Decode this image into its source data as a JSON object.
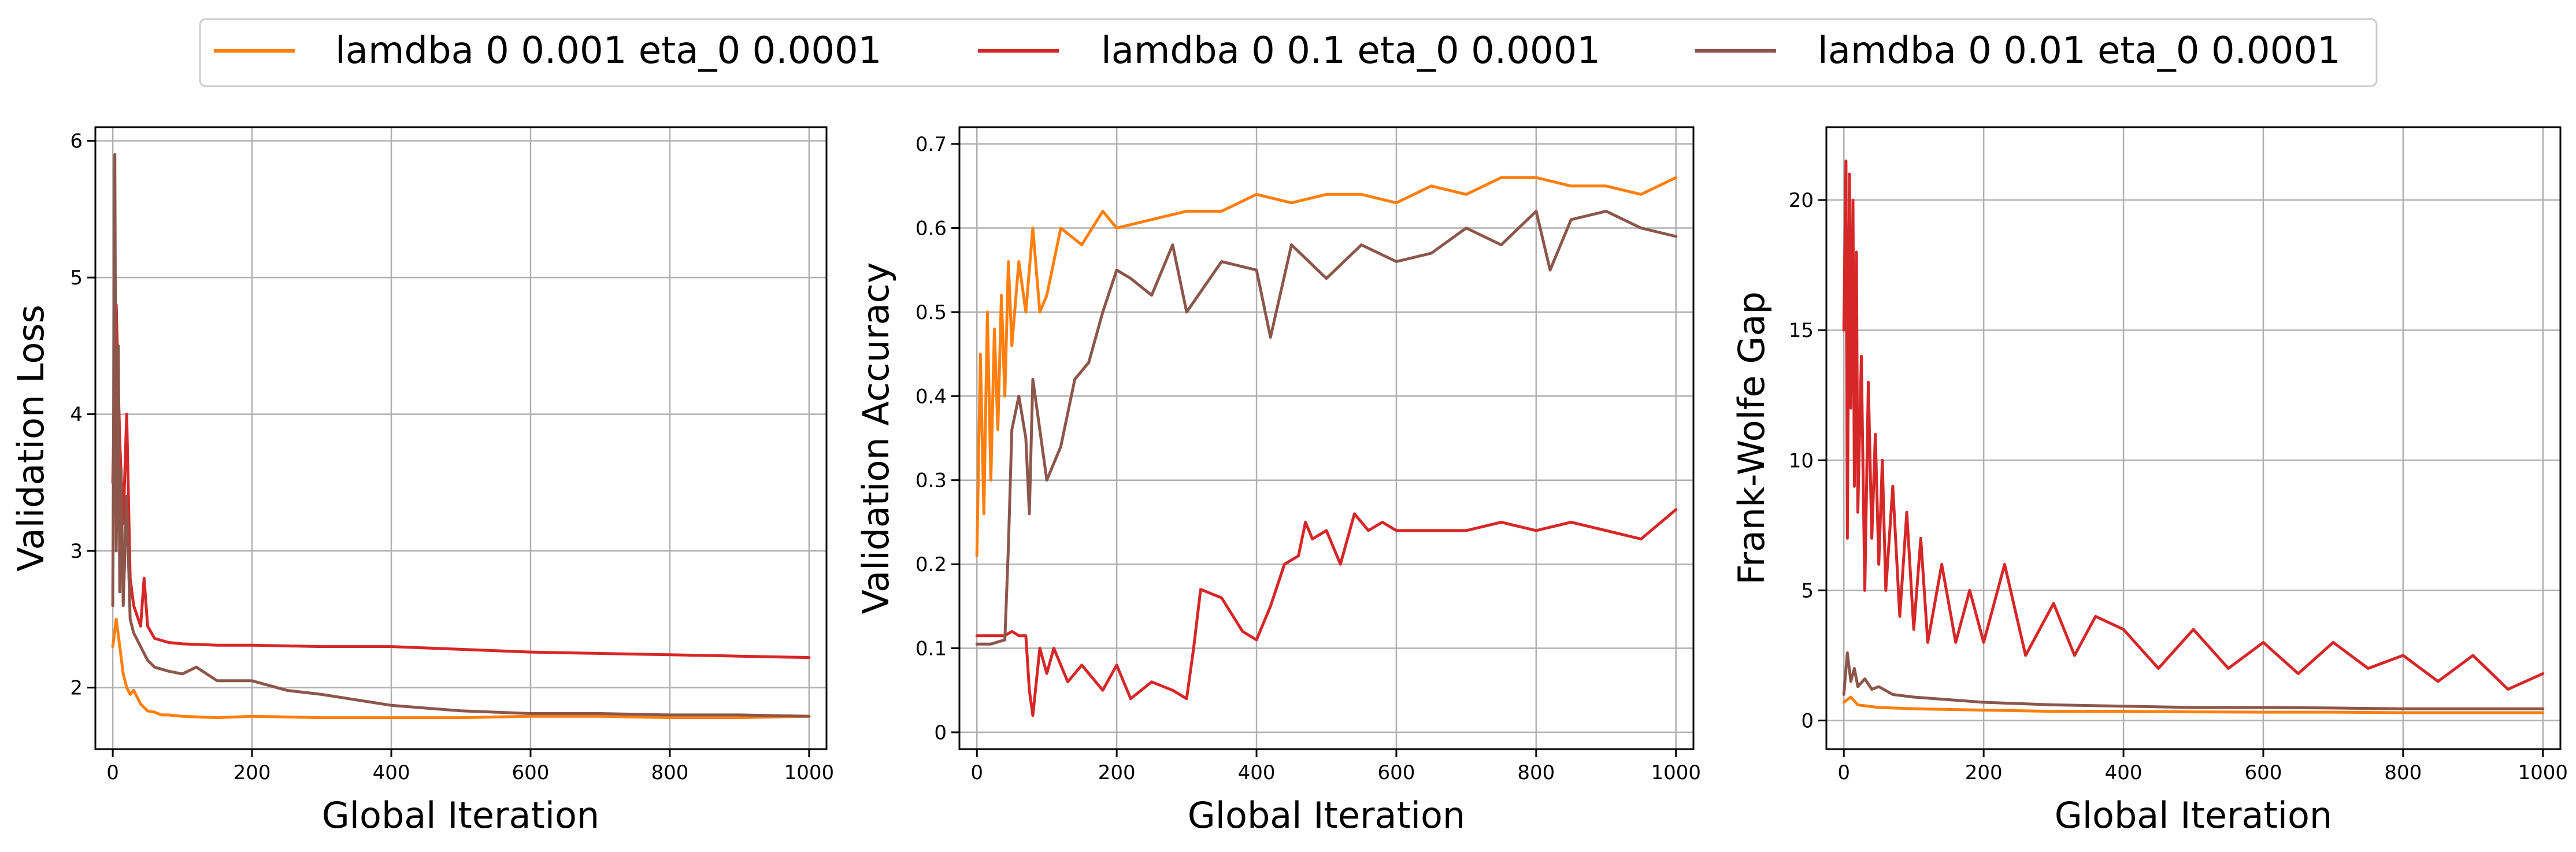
{
  "chart_data": [
    {
      "type": "line",
      "xlabel": "Global Iteration",
      "ylabel": "Validation Loss",
      "xlim": [
        -25,
        1025
      ],
      "ylim": [
        1.55,
        6.1
      ],
      "xticks": [
        0,
        200,
        400,
        600,
        800,
        1000
      ],
      "yticks": [
        2,
        3,
        4,
        5,
        6
      ],
      "grid": true,
      "series": [
        {
          "name": "lamdba 0 0.001 eta_0 0.0001",
          "x": [
            0,
            5,
            10,
            15,
            20,
            25,
            30,
            40,
            50,
            60,
            70,
            80,
            100,
            150,
            200,
            300,
            400,
            500,
            600,
            700,
            800,
            900,
            1000
          ],
          "y": [
            2.3,
            2.5,
            2.3,
            2.1,
            2.0,
            1.95,
            1.98,
            1.88,
            1.83,
            1.82,
            1.8,
            1.8,
            1.79,
            1.78,
            1.79,
            1.78,
            1.78,
            1.78,
            1.79,
            1.79,
            1.78,
            1.78,
            1.79
          ]
        },
        {
          "name": "lamdba 0 0.1 eta_0 0.0001",
          "x": [
            0,
            5,
            10,
            15,
            20,
            25,
            30,
            40,
            45,
            50,
            60,
            80,
            100,
            150,
            200,
            300,
            400,
            500,
            600,
            700,
            800,
            900,
            1000
          ],
          "y": [
            3.5,
            4.8,
            3.8,
            3.2,
            4.0,
            2.8,
            2.6,
            2.45,
            2.8,
            2.45,
            2.36,
            2.33,
            2.32,
            2.31,
            2.31,
            2.3,
            2.3,
            2.28,
            2.26,
            2.25,
            2.24,
            2.23,
            2.22
          ]
        },
        {
          "name": "lamdba 0 0.01 eta_0 0.0001",
          "x": [
            0,
            3,
            5,
            8,
            10,
            12,
            15,
            20,
            25,
            30,
            40,
            50,
            60,
            80,
            100,
            120,
            150,
            200,
            250,
            300,
            400,
            500,
            600,
            700,
            800,
            900,
            1000
          ],
          "y": [
            2.6,
            5.9,
            3.0,
            4.5,
            2.7,
            3.6,
            2.6,
            3.4,
            2.5,
            2.4,
            2.3,
            2.2,
            2.15,
            2.12,
            2.1,
            2.15,
            2.05,
            2.05,
            1.98,
            1.95,
            1.87,
            1.83,
            1.81,
            1.81,
            1.8,
            1.8,
            1.79
          ]
        }
      ]
    },
    {
      "type": "line",
      "xlabel": "Global Iteration",
      "ylabel": "Validation Accuracy",
      "xlim": [
        -25,
        1025
      ],
      "ylim": [
        -0.02,
        0.72
      ],
      "xticks": [
        0,
        200,
        400,
        600,
        800,
        1000
      ],
      "yticks": [
        0.0,
        0.1,
        0.2,
        0.3,
        0.4,
        0.5,
        0.6,
        0.7
      ],
      "grid": true,
      "series": [
        {
          "name": "lamdba 0 0.001 eta_0 0.0001",
          "x": [
            0,
            5,
            10,
            15,
            20,
            25,
            30,
            35,
            40,
            45,
            50,
            60,
            70,
            80,
            90,
            100,
            120,
            150,
            180,
            200,
            250,
            300,
            350,
            400,
            450,
            500,
            550,
            600,
            650,
            700,
            750,
            800,
            850,
            900,
            950,
            1000
          ],
          "y": [
            0.21,
            0.45,
            0.26,
            0.5,
            0.3,
            0.48,
            0.36,
            0.52,
            0.4,
            0.56,
            0.46,
            0.56,
            0.5,
            0.6,
            0.5,
            0.52,
            0.6,
            0.58,
            0.62,
            0.6,
            0.61,
            0.62,
            0.62,
            0.64,
            0.63,
            0.64,
            0.64,
            0.63,
            0.65,
            0.64,
            0.66,
            0.66,
            0.65,
            0.65,
            0.64,
            0.66
          ]
        },
        {
          "name": "lamdba 0 0.1 eta_0 0.0001",
          "x": [
            0,
            20,
            40,
            50,
            60,
            70,
            75,
            80,
            90,
            100,
            110,
            130,
            150,
            180,
            200,
            220,
            250,
            280,
            300,
            310,
            320,
            350,
            380,
            400,
            420,
            440,
            460,
            470,
            480,
            500,
            520,
            540,
            560,
            580,
            600,
            650,
            700,
            750,
            800,
            850,
            900,
            950,
            1000
          ],
          "y": [
            0.115,
            0.115,
            0.115,
            0.12,
            0.115,
            0.115,
            0.05,
            0.02,
            0.1,
            0.07,
            0.1,
            0.06,
            0.08,
            0.05,
            0.08,
            0.04,
            0.06,
            0.05,
            0.04,
            0.1,
            0.17,
            0.16,
            0.12,
            0.11,
            0.15,
            0.2,
            0.21,
            0.25,
            0.23,
            0.24,
            0.2,
            0.26,
            0.24,
            0.25,
            0.24,
            0.24,
            0.24,
            0.25,
            0.24,
            0.25,
            0.24,
            0.23,
            0.265
          ]
        },
        {
          "name": "lamdba 0 0.01 eta_0 0.0001",
          "x": [
            0,
            20,
            40,
            45,
            50,
            60,
            70,
            75,
            80,
            90,
            100,
            120,
            140,
            160,
            180,
            200,
            220,
            250,
            280,
            300,
            350,
            400,
            420,
            450,
            500,
            550,
            600,
            650,
            700,
            750,
            800,
            820,
            850,
            900,
            950,
            1000
          ],
          "y": [
            0.105,
            0.105,
            0.11,
            0.22,
            0.36,
            0.4,
            0.35,
            0.26,
            0.42,
            0.36,
            0.3,
            0.34,
            0.42,
            0.44,
            0.5,
            0.55,
            0.54,
            0.52,
            0.58,
            0.5,
            0.56,
            0.55,
            0.47,
            0.58,
            0.54,
            0.58,
            0.56,
            0.57,
            0.6,
            0.58,
            0.62,
            0.55,
            0.61,
            0.62,
            0.6,
            0.59
          ]
        }
      ]
    },
    {
      "type": "line",
      "xlabel": "Global Iteration",
      "ylabel": "Frank-Wolfe Gap",
      "xlim": [
        -25,
        1025
      ],
      "ylim": [
        -1.1,
        22.8
      ],
      "xticks": [
        0,
        200,
        400,
        600,
        800,
        1000
      ],
      "yticks": [
        0,
        5,
        10,
        15,
        20
      ],
      "grid": true,
      "series": [
        {
          "name": "lamdba 0 0.001 eta_0 0.0001",
          "x": [
            0,
            10,
            20,
            50,
            100,
            200,
            300,
            400,
            500,
            600,
            700,
            800,
            900,
            1000
          ],
          "y": [
            0.7,
            0.9,
            0.6,
            0.5,
            0.45,
            0.4,
            0.35,
            0.35,
            0.33,
            0.32,
            0.32,
            0.3,
            0.3,
            0.3
          ]
        },
        {
          "name": "lamdba 0 0.1 eta_0 0.0001",
          "x": [
            0,
            3,
            5,
            8,
            10,
            13,
            15,
            18,
            20,
            25,
            30,
            35,
            40,
            45,
            50,
            55,
            60,
            70,
            80,
            90,
            100,
            110,
            120,
            140,
            160,
            180,
            200,
            230,
            260,
            300,
            330,
            360,
            400,
            450,
            500,
            550,
            600,
            650,
            700,
            750,
            800,
            850,
            900,
            950,
            1000
          ],
          "y": [
            15,
            21.5,
            7,
            21,
            12,
            20,
            9,
            18,
            8,
            14,
            5,
            13,
            7,
            11,
            6,
            10,
            5,
            9,
            4,
            8,
            3.5,
            7,
            3,
            6,
            3,
            5,
            3,
            6,
            2.5,
            4.5,
            2.5,
            4,
            3.5,
            2,
            3.5,
            2,
            3,
            1.8,
            3,
            2,
            2.5,
            1.5,
            2.5,
            1.2,
            1.8
          ]
        },
        {
          "name": "lamdba 0 0.01 eta_0 0.0001",
          "x": [
            0,
            5,
            10,
            15,
            20,
            30,
            40,
            50,
            70,
            100,
            150,
            200,
            300,
            400,
            500,
            600,
            700,
            800,
            900,
            1000
          ],
          "y": [
            1.0,
            2.6,
            1.5,
            2.0,
            1.3,
            1.6,
            1.2,
            1.3,
            1.0,
            0.9,
            0.8,
            0.7,
            0.6,
            0.55,
            0.5,
            0.5,
            0.48,
            0.45,
            0.45,
            0.45
          ]
        }
      ]
    }
  ],
  "legend": {
    "placement": "top-center",
    "entries": [
      {
        "label": "lamdba 0 0.001 eta_0 0.0001",
        "color": "#ff7f0e"
      },
      {
        "label": "lamdba 0 0.1 eta_0 0.0001",
        "color": "#d62728"
      },
      {
        "label": "lamdba 0 0.01 eta_0 0.0001",
        "color": "#8c564b"
      }
    ]
  }
}
